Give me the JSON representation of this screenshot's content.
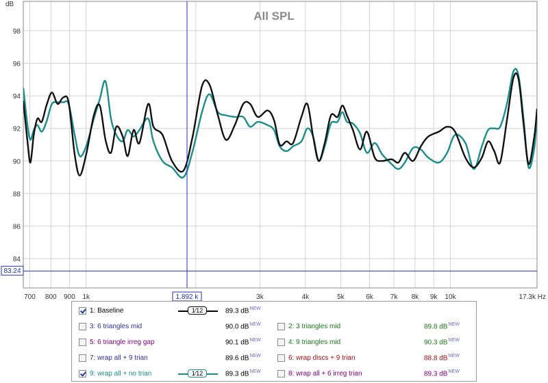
{
  "chart_data": {
    "type": "line",
    "title": "All SPL",
    "ylabel": "dB",
    "xlabel": "",
    "x_unit": "Hz",
    "xscale": "log",
    "xlim": [
      672,
      17300
    ],
    "ylim": [
      82.2,
      99.8
    ],
    "yticks": [
      84,
      86,
      88,
      90,
      92,
      94,
      96,
      98
    ],
    "xtick_labels": [
      {
        "f": 700,
        "label": "700"
      },
      {
        "f": 800,
        "label": "800"
      },
      {
        "f": 900,
        "label": "900"
      },
      {
        "f": 1000,
        "label": "1k"
      },
      {
        "f": 3000,
        "label": "3k"
      },
      {
        "f": 4000,
        "label": "4k"
      },
      {
        "f": 5000,
        "label": "5k"
      },
      {
        "f": 6000,
        "label": "6k"
      },
      {
        "f": 7000,
        "label": "7k"
      },
      {
        "f": 8000,
        "label": "8k"
      },
      {
        "f": 9000,
        "label": "9k"
      },
      {
        "f": 10000,
        "label": "10k"
      },
      {
        "f": 17300,
        "label": "17.3k Hz"
      }
    ],
    "xgrid": [
      700,
      800,
      900,
      1000,
      2000,
      3000,
      4000,
      5000,
      6000,
      7000,
      8000,
      9000,
      10000
    ],
    "grid": true,
    "cursor": {
      "freq": 1892,
      "freq_label": "1.892 k",
      "level": 83.24,
      "level_label": "83.24"
    },
    "series": [
      {
        "name": "1: Baseline",
        "color": "#111111",
        "points": [
          [
            672,
            93.7
          ],
          [
            690,
            91.2
          ],
          [
            703,
            89.9
          ],
          [
            718,
            91.6
          ],
          [
            735,
            92.6
          ],
          [
            755,
            92.4
          ],
          [
            778,
            93.4
          ],
          [
            805,
            94.2
          ],
          [
            835,
            93.5
          ],
          [
            865,
            93.9
          ],
          [
            895,
            93.6
          ],
          [
            930,
            90.4
          ],
          [
            960,
            89.1
          ],
          [
            1000,
            90.4
          ],
          [
            1050,
            92.8
          ],
          [
            1090,
            93.4
          ],
          [
            1130,
            91.3
          ],
          [
            1170,
            90.5
          ],
          [
            1210,
            92.1
          ],
          [
            1260,
            91.5
          ],
          [
            1300,
            90.3
          ],
          [
            1350,
            91.9
          ],
          [
            1400,
            91.1
          ],
          [
            1480,
            93.5
          ],
          [
            1530,
            92.1
          ],
          [
            1620,
            91.6
          ],
          [
            1720,
            90.0
          ],
          [
            1850,
            89.4
          ],
          [
            1960,
            91.5
          ],
          [
            2080,
            94.6
          ],
          [
            2180,
            94.7
          ],
          [
            2300,
            92.8
          ],
          [
            2420,
            91.3
          ],
          [
            2560,
            92.2
          ],
          [
            2700,
            93.5
          ],
          [
            2820,
            93.5
          ],
          [
            2960,
            92.7
          ],
          [
            3150,
            93.1
          ],
          [
            3280,
            92.5
          ],
          [
            3400,
            91.0
          ],
          [
            3550,
            91.2
          ],
          [
            3700,
            91.1
          ],
          [
            3900,
            92.7
          ],
          [
            4050,
            93.5
          ],
          [
            4200,
            91.5
          ],
          [
            4350,
            90.0
          ],
          [
            4520,
            91.1
          ],
          [
            4700,
            92.8
          ],
          [
            4900,
            92.7
          ],
          [
            5050,
            93.4
          ],
          [
            5200,
            92.8
          ],
          [
            5400,
            91.9
          ],
          [
            5650,
            90.7
          ],
          [
            5900,
            91.8
          ],
          [
            6200,
            90.2
          ],
          [
            6500,
            90.0
          ],
          [
            6900,
            90.1
          ],
          [
            7200,
            89.9
          ],
          [
            7500,
            90.5
          ],
          [
            7900,
            90.0
          ],
          [
            8300,
            90.9
          ],
          [
            8700,
            91.5
          ],
          [
            9300,
            91.8
          ],
          [
            9800,
            92.1
          ],
          [
            10300,
            91.8
          ],
          [
            11000,
            90.2
          ],
          [
            11600,
            89.6
          ],
          [
            12200,
            90.2
          ],
          [
            12700,
            91.2
          ],
          [
            13200,
            90.6
          ],
          [
            13700,
            89.9
          ],
          [
            14300,
            92.5
          ],
          [
            14900,
            95.1
          ],
          [
            15400,
            95.0
          ],
          [
            15900,
            92.2
          ],
          [
            16400,
            89.8
          ],
          [
            17000,
            91.5
          ],
          [
            17300,
            93.2
          ]
        ]
      },
      {
        "name": "9: wrap all + no trian",
        "color": "#1b8c8c",
        "points": [
          [
            672,
            94.5
          ],
          [
            690,
            92.2
          ],
          [
            703,
            91.3
          ],
          [
            718,
            91.9
          ],
          [
            735,
            92.2
          ],
          [
            755,
            91.8
          ],
          [
            778,
            92.4
          ],
          [
            805,
            93.5
          ],
          [
            835,
            93.6
          ],
          [
            865,
            93.6
          ],
          [
            895,
            93.5
          ],
          [
            930,
            91.6
          ],
          [
            960,
            90.3
          ],
          [
            1000,
            90.9
          ],
          [
            1050,
            92.6
          ],
          [
            1090,
            93.8
          ],
          [
            1130,
            94.9
          ],
          [
            1170,
            92.6
          ],
          [
            1210,
            91.6
          ],
          [
            1260,
            91.2
          ],
          [
            1300,
            91.9
          ],
          [
            1350,
            91.5
          ],
          [
            1400,
            91.9
          ],
          [
            1480,
            92.6
          ],
          [
            1530,
            91.2
          ],
          [
            1620,
            90.0
          ],
          [
            1720,
            89.6
          ],
          [
            1850,
            89.0
          ],
          [
            1960,
            90.6
          ],
          [
            2080,
            93.0
          ],
          [
            2180,
            94.1
          ],
          [
            2300,
            93.0
          ],
          [
            2420,
            92.8
          ],
          [
            2560,
            92.7
          ],
          [
            2700,
            92.7
          ],
          [
            2820,
            92.1
          ],
          [
            2960,
            92.4
          ],
          [
            3150,
            92.2
          ],
          [
            3280,
            91.9
          ],
          [
            3400,
            90.9
          ],
          [
            3550,
            90.6
          ],
          [
            3700,
            90.9
          ],
          [
            3900,
            91.2
          ],
          [
            4050,
            92.0
          ],
          [
            4200,
            91.5
          ],
          [
            4350,
            90.0
          ],
          [
            4520,
            90.9
          ],
          [
            4700,
            92.3
          ],
          [
            4900,
            92.4
          ],
          [
            5050,
            93.0
          ],
          [
            5200,
            92.4
          ],
          [
            5400,
            92.3
          ],
          [
            5650,
            91.7
          ],
          [
            5900,
            90.5
          ],
          [
            6200,
            91.1
          ],
          [
            6500,
            90.4
          ],
          [
            6900,
            89.8
          ],
          [
            7200,
            89.5
          ],
          [
            7500,
            89.9
          ],
          [
            7900,
            90.8
          ],
          [
            8300,
            90.7
          ],
          [
            8700,
            90.2
          ],
          [
            9300,
            89.9
          ],
          [
            9800,
            90.5
          ],
          [
            10300,
            91.6
          ],
          [
            11000,
            91.1
          ],
          [
            11600,
            89.5
          ],
          [
            12200,
            90.9
          ],
          [
            12700,
            91.9
          ],
          [
            13200,
            92.0
          ],
          [
            13700,
            92.1
          ],
          [
            14300,
            93.5
          ],
          [
            14900,
            95.5
          ],
          [
            15400,
            95.2
          ],
          [
            15900,
            92.5
          ],
          [
            16400,
            89.6
          ],
          [
            17000,
            90.8
          ],
          [
            17300,
            92.9
          ]
        ]
      }
    ]
  },
  "legend": {
    "entries": [
      {
        "label": "1: Baseline",
        "value": "89.3 dB",
        "tag": "NEW",
        "checked": true,
        "color": "#000000",
        "smoothing": "1⁄12"
      },
      {
        "label": "2: 3 triangles mid",
        "value": "89.8 dB",
        "tag": "NEW",
        "checked": false,
        "color": "#1a7a1a"
      },
      {
        "label": "3: 6 triangles mid",
        "value": "90.0 dB",
        "tag": "NEW",
        "checked": false,
        "color": "#3030a0"
      },
      {
        "label": "4: 9 triangles mid",
        "value": "90.3 dB",
        "tag": "NEW",
        "checked": false,
        "color": "#1a7a1a"
      },
      {
        "label": "5: 6 triangle irreg gap",
        "value": "90.1 dB",
        "tag": "NEW",
        "checked": false,
        "color": "#800080"
      },
      {
        "label": "6: wrap discs + 9 trian",
        "value": "88.8 dB",
        "tag": "NEW",
        "checked": false,
        "color": "#a01010"
      },
      {
        "label": "7: wrap all + 9 trian",
        "value": "89.6 dB",
        "tag": "NEW",
        "checked": false,
        "color": "#3030a0"
      },
      {
        "label": "8: wrap all + 6 irreg trian",
        "value": "89.3 dB",
        "tag": "NEW",
        "checked": false,
        "color": "#800080"
      },
      {
        "label": "9: wrap all + no trian",
        "value": "89.3 dB",
        "tag": "NEW",
        "checked": true,
        "color": "#1b8c8c",
        "smoothing": "1⁄12"
      }
    ]
  }
}
